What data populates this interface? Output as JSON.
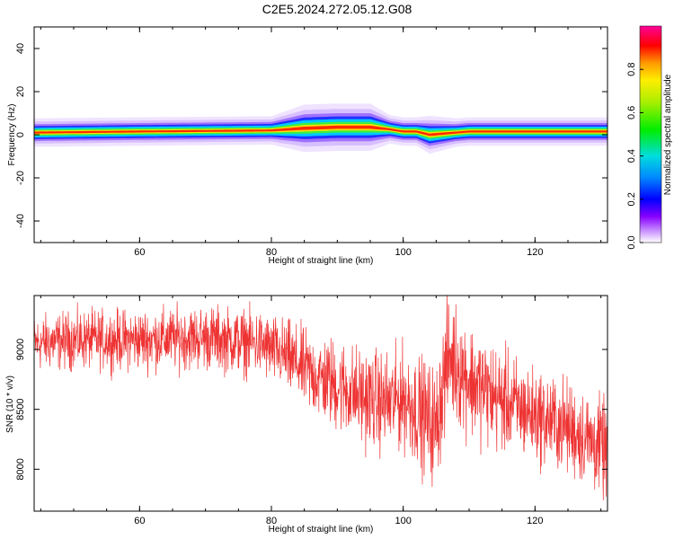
{
  "title": "C2E5.2024.272.05.12.G08",
  "chart_data": [
    {
      "type": "heatmap",
      "xlabel": "Height of straight line (km)",
      "ylabel": "Frequency (Hz)",
      "xlim": [
        44,
        131
      ],
      "ylim": [
        -50,
        50
      ],
      "xticks": [
        "60",
        "80",
        "100",
        "120"
      ],
      "yticks": [
        "40",
        "20",
        "0",
        "-20",
        "-40"
      ],
      "colorbar": {
        "label": "Normalized spectral amplitude",
        "range": [
          0,
          1
        ],
        "ticks": [
          "0.0",
          "0.2",
          "0.4",
          "0.6",
          "0.8"
        ]
      },
      "band": {
        "center_freq_hz": [
          [
            44,
            1
          ],
          [
            60,
            1.5
          ],
          [
            80,
            2
          ],
          [
            85,
            3
          ],
          [
            90,
            3.5
          ],
          [
            95,
            3.5
          ],
          [
            98,
            2.5
          ],
          [
            100,
            1.5
          ],
          [
            102,
            1.5
          ],
          [
            104,
            0
          ],
          [
            106,
            0.5
          ],
          [
            110,
            1.5
          ],
          [
            120,
            1.5
          ],
          [
            131,
            1.5
          ]
        ],
        "half_width_hz": [
          [
            44,
            3
          ],
          [
            80,
            3
          ],
          [
            85,
            5
          ],
          [
            95,
            5
          ],
          [
            98,
            3
          ],
          [
            102,
            3
          ],
          [
            104,
            4
          ],
          [
            108,
            3
          ],
          [
            131,
            3
          ]
        ]
      }
    },
    {
      "type": "line",
      "xlabel": "Height of straight line (km)",
      "ylabel": "SNR (10 * v/v)",
      "xlim": [
        44,
        131
      ],
      "ylim": [
        7650,
        9450
      ],
      "xticks": [
        "60",
        "80",
        "100",
        "120"
      ],
      "yticks": [
        "9000",
        "8500",
        "8000"
      ],
      "color": "#ee3333",
      "series": [
        {
          "trend": [
            [
              44,
              9050
            ],
            [
              50,
              9080
            ],
            [
              60,
              9080
            ],
            [
              70,
              9100
            ],
            [
              78,
              9050
            ],
            [
              82,
              8950
            ],
            [
              86,
              8800
            ],
            [
              90,
              8700
            ],
            [
              94,
              8600
            ],
            [
              98,
              8550
            ],
            [
              100,
              8600
            ],
            [
              103,
              8450
            ],
            [
              105,
              8350
            ],
            [
              106,
              8700
            ],
            [
              107,
              8950
            ],
            [
              110,
              8750
            ],
            [
              114,
              8600
            ],
            [
              120,
              8450
            ],
            [
              125,
              8350
            ],
            [
              131,
              8150
            ]
          ],
          "noise_amplitude": [
            [
              44,
              150
            ],
            [
              80,
              180
            ],
            [
              90,
              250
            ],
            [
              100,
              280
            ],
            [
              106,
              330
            ],
            [
              120,
              250
            ],
            [
              131,
              260
            ]
          ]
        }
      ]
    }
  ]
}
